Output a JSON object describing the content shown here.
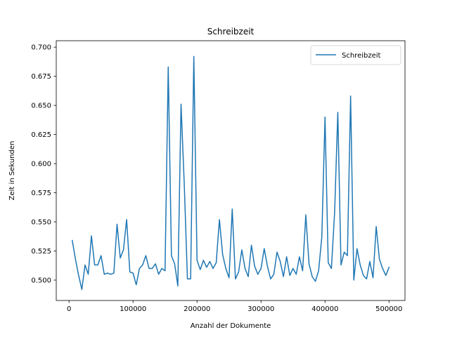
{
  "chart_data": {
    "type": "line",
    "title": "Schreibzeit",
    "xlabel": "Anzahl der Dokumente",
    "ylabel": "Zeit in Sekunden",
    "xlim": [
      -20000,
      525000
    ],
    "ylim": [
      0.4825,
      0.7055
    ],
    "xticks": [
      0,
      100000,
      200000,
      300000,
      400000,
      500000
    ],
    "xtick_labels": [
      "0",
      "100000",
      "200000",
      "300000",
      "400000",
      "500000"
    ],
    "yticks": [
      0.5,
      0.525,
      0.55,
      0.575,
      0.6,
      0.625,
      0.65,
      0.675,
      0.7
    ],
    "ytick_labels": [
      "0.500",
      "0.525",
      "0.550",
      "0.575",
      "0.600",
      "0.625",
      "0.650",
      "0.675",
      "0.700"
    ],
    "grid": false,
    "legend": {
      "position": "top-right"
    },
    "series": [
      {
        "name": "Schreibzeit",
        "color": "#1f77b4",
        "x": [
          5000,
          10000,
          15000,
          20000,
          25000,
          30000,
          35000,
          40000,
          45000,
          50000,
          55000,
          60000,
          65000,
          70000,
          75000,
          80000,
          85000,
          90000,
          95000,
          100000,
          105000,
          110000,
          115000,
          120000,
          125000,
          130000,
          135000,
          140000,
          145000,
          150000,
          155000,
          160000,
          165000,
          170000,
          175000,
          180000,
          185000,
          190000,
          195000,
          200000,
          205000,
          210000,
          215000,
          220000,
          225000,
          230000,
          235000,
          240000,
          245000,
          250000,
          255000,
          260000,
          265000,
          270000,
          275000,
          280000,
          285000,
          290000,
          295000,
          300000,
          305000,
          310000,
          315000,
          320000,
          325000,
          330000,
          335000,
          340000,
          345000,
          350000,
          355000,
          360000,
          365000,
          370000,
          375000,
          380000,
          385000,
          390000,
          395000,
          400000,
          405000,
          410000,
          415000,
          420000,
          425000,
          430000,
          435000,
          440000,
          445000,
          450000,
          455000,
          460000,
          465000,
          470000,
          475000,
          480000,
          485000,
          490000,
          495000,
          500000
        ],
        "y": [
          0.534,
          0.518,
          0.504,
          0.492,
          0.513,
          0.505,
          0.538,
          0.513,
          0.513,
          0.521,
          0.505,
          0.506,
          0.505,
          0.506,
          0.548,
          0.519,
          0.526,
          0.552,
          0.507,
          0.506,
          0.496,
          0.51,
          0.513,
          0.521,
          0.51,
          0.51,
          0.514,
          0.505,
          0.51,
          0.508,
          0.683,
          0.521,
          0.514,
          0.495,
          0.651,
          0.583,
          0.501,
          0.501,
          0.692,
          0.517,
          0.509,
          0.517,
          0.511,
          0.516,
          0.51,
          0.515,
          0.552,
          0.522,
          0.51,
          0.502,
          0.561,
          0.501,
          0.507,
          0.526,
          0.51,
          0.503,
          0.53,
          0.512,
          0.505,
          0.51,
          0.527,
          0.512,
          0.501,
          0.505,
          0.524,
          0.516,
          0.503,
          0.52,
          0.504,
          0.51,
          0.505,
          0.52,
          0.508,
          0.556,
          0.514,
          0.503,
          0.499,
          0.508,
          0.537,
          0.64,
          0.515,
          0.51,
          0.558,
          0.644,
          0.513,
          0.524,
          0.521,
          0.658,
          0.5,
          0.527,
          0.513,
          0.504,
          0.501,
          0.516,
          0.502,
          0.546,
          0.518,
          0.51,
          0.504,
          0.511
        ]
      }
    ]
  }
}
